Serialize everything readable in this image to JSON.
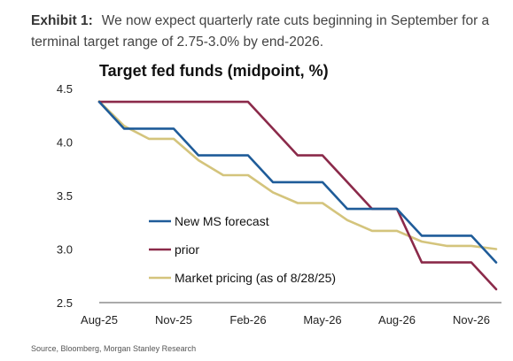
{
  "exhibit": {
    "label": "Exhibit 1:",
    "text": "We now expect quarterly rate cuts beginning in September for a terminal target range of 2.75-3.0% by end-2026."
  },
  "source": "Source, Bloomberg, Morgan Stanley Research",
  "chart_data": {
    "type": "line",
    "title": "Target fed funds (midpoint, %)",
    "xlabel": "",
    "ylabel": "",
    "x_tick_labels": [
      "Aug-25",
      "Nov-25",
      "Feb-26",
      "May-26",
      "Aug-26",
      "Nov-26"
    ],
    "x_range": [
      0,
      16
    ],
    "ylim": [
      2.5,
      4.5
    ],
    "y_ticks": [
      "2.5",
      "3.0",
      "3.5",
      "4.0",
      "4.5"
    ],
    "grid": false,
    "legend_placement": "center-left",
    "series": [
      {
        "name": "New MS forecast",
        "color": "#1f5c99",
        "step": true,
        "x": [
          0,
          1,
          3,
          4,
          6,
          7,
          9,
          10,
          12,
          13,
          15,
          16
        ],
        "y": [
          4.375,
          4.125,
          4.125,
          3.875,
          3.875,
          3.625,
          3.625,
          3.375,
          3.375,
          3.125,
          3.125,
          2.875
        ]
      },
      {
        "name": "prior",
        "color": "#8b2a4a",
        "step": true,
        "x": [
          0,
          6,
          8,
          9,
          11,
          12,
          13,
          15,
          16
        ],
        "y": [
          4.375,
          4.375,
          3.875,
          3.875,
          3.375,
          3.375,
          2.875,
          2.875,
          2.625
        ]
      },
      {
        "name": "Market pricing (as of 8/28/25)",
        "color": "#d4c47c",
        "step": false,
        "x": [
          0,
          1,
          2,
          3,
          4,
          5,
          6,
          7,
          8,
          9,
          10,
          11,
          12,
          13,
          14,
          15,
          16
        ],
        "y": [
          4.38,
          4.15,
          4.03,
          4.03,
          3.83,
          3.69,
          3.69,
          3.53,
          3.43,
          3.43,
          3.27,
          3.17,
          3.17,
          3.07,
          3.03,
          3.03,
          3.0
        ]
      }
    ]
  }
}
